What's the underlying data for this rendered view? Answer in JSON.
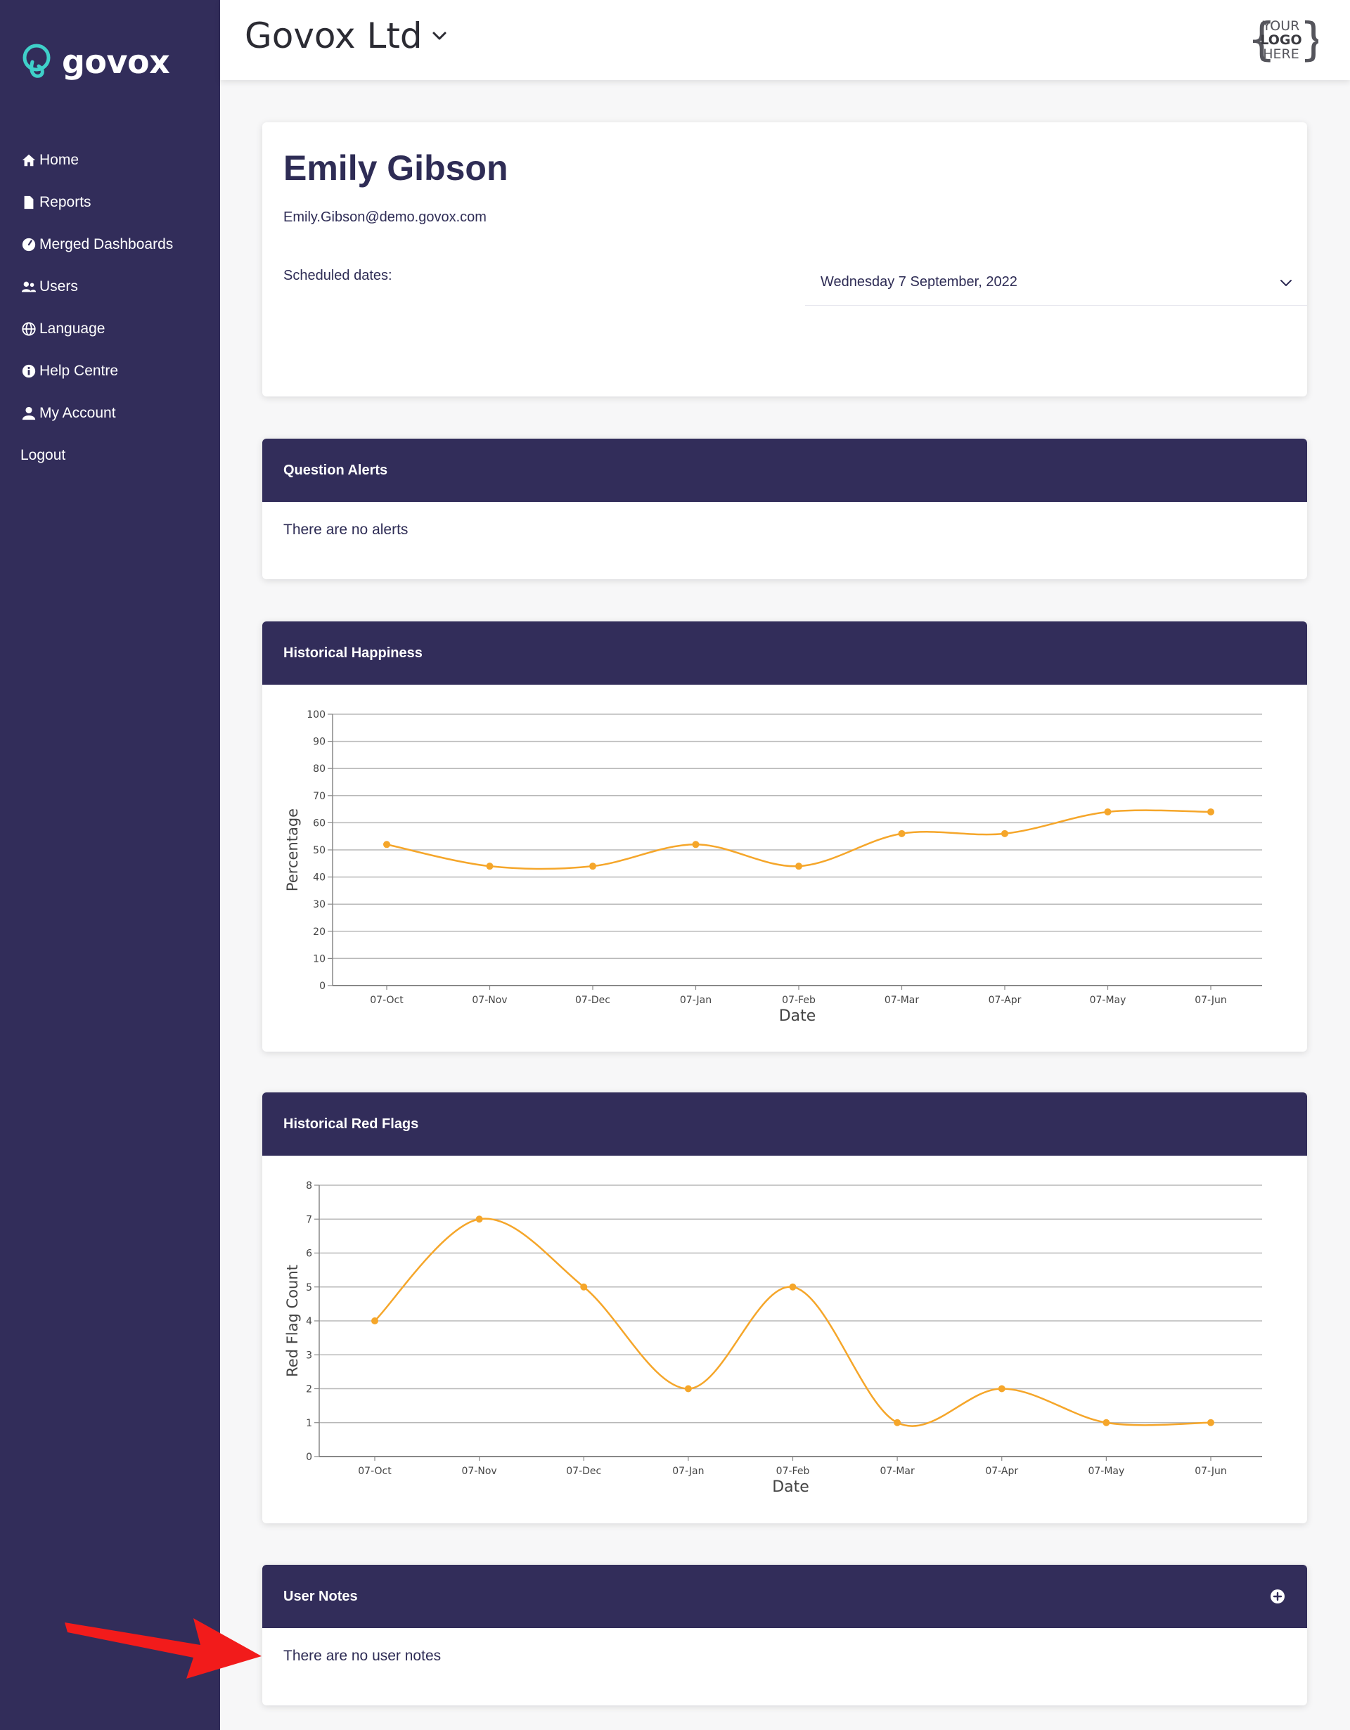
{
  "sidebar": {
    "brand": "govox",
    "items": [
      {
        "label": "Home",
        "icon": "home-icon"
      },
      {
        "label": "Reports",
        "icon": "file-icon"
      },
      {
        "label": "Merged Dashboards",
        "icon": "gauge-icon"
      },
      {
        "label": "Users",
        "icon": "users-icon"
      },
      {
        "label": "Language",
        "icon": "globe-icon"
      },
      {
        "label": "Help Centre",
        "icon": "info-icon"
      },
      {
        "label": "My Account",
        "icon": "user-icon"
      },
      {
        "label": "Logout",
        "icon": ""
      }
    ],
    "background": "#322d5a"
  },
  "header": {
    "org_name": "Govox Ltd",
    "logo_placeholder": {
      "line1": "YOUR",
      "line2": "LOGO",
      "line3": "HERE"
    }
  },
  "profile": {
    "name": "Emily Gibson",
    "email": "Emily.Gibson@demo.govox.com",
    "scheduled_label": "Scheduled dates:",
    "scheduled_value": "Wednesday 7 September, 2022"
  },
  "alerts": {
    "title": "Question Alerts",
    "empty_text": "There are no alerts"
  },
  "notes": {
    "title": "User Notes",
    "empty_text": "There are no user notes"
  },
  "colors": {
    "accent": "#f5a62a",
    "header": "#322d5a",
    "annotation_arrow": "#f21b1b"
  },
  "chart_data": [
    {
      "type": "line",
      "title": "Historical Happiness",
      "xlabel": "Date",
      "ylabel": "Percentage",
      "categories": [
        "07-Oct",
        "07-Nov",
        "07-Dec",
        "07-Jan",
        "07-Feb",
        "07-Mar",
        "07-Apr",
        "07-May",
        "07-Jun"
      ],
      "values": [
        52,
        44,
        44,
        52,
        44,
        56,
        56,
        64,
        64
      ],
      "ylim": [
        0,
        100
      ],
      "yticks": [
        0,
        10,
        20,
        30,
        40,
        50,
        60,
        70,
        80,
        90,
        100
      ],
      "grid": true
    },
    {
      "type": "line",
      "title": "Historical Red Flags",
      "xlabel": "Date",
      "ylabel": "Red Flag Count",
      "categories": [
        "07-Oct",
        "07-Nov",
        "07-Dec",
        "07-Jan",
        "07-Feb",
        "07-Mar",
        "07-Apr",
        "07-May",
        "07-Jun"
      ],
      "values": [
        4,
        7,
        5,
        2,
        5,
        1,
        2,
        1,
        1
      ],
      "ylim": [
        0,
        8
      ],
      "yticks": [
        0,
        1,
        2,
        3,
        4,
        5,
        6,
        7,
        8
      ],
      "grid": true
    }
  ]
}
